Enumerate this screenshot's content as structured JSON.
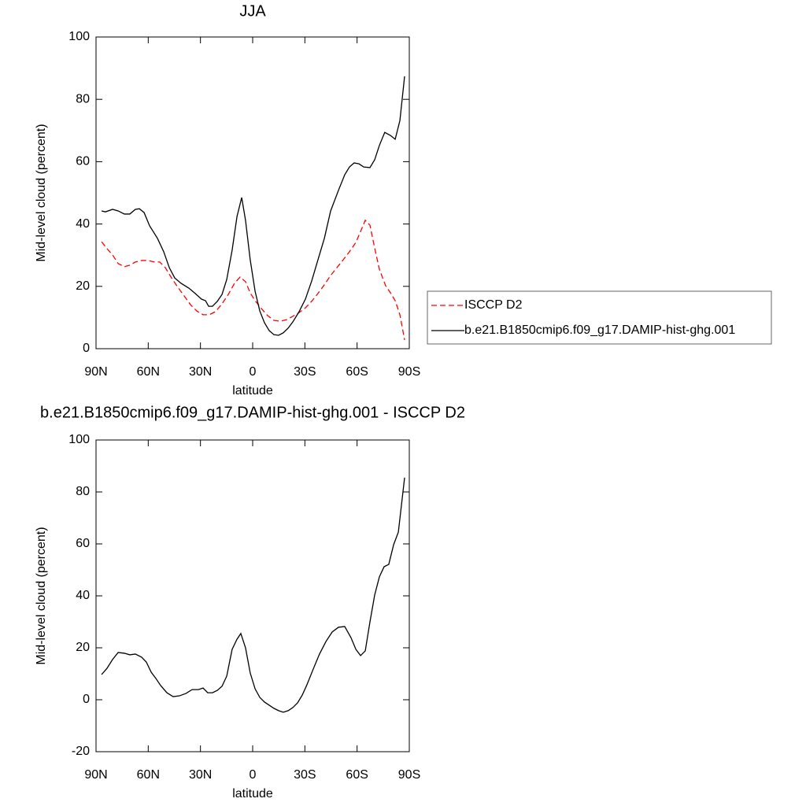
{
  "chart_data": [
    {
      "type": "line",
      "title": "JJA",
      "xlabel": "latitude",
      "ylabel": "Mid-level cloud (percent)",
      "xlim": [
        90,
        -90
      ],
      "xticks": [
        {
          "value": 90,
          "label": "90N"
        },
        {
          "value": 60,
          "label": "60N"
        },
        {
          "value": 30,
          "label": "30N"
        },
        0,
        {
          "value": -30,
          "label": "30S"
        },
        {
          "value": -60,
          "label": "60S"
        },
        {
          "value": -90,
          "label": "90S"
        }
      ],
      "ylim": [
        0,
        100
      ],
      "yticks": [
        0,
        20,
        40,
        60,
        80,
        100
      ],
      "legend": "right",
      "series": [
        {
          "name": "ISCCP D2",
          "color": "#ff0000",
          "dash": "dashed",
          "x": [
            86.8,
            83.7,
            80.5,
            77.3,
            73.7,
            70.6,
            67.4,
            63.8,
            60.1,
            56.5,
            53.4,
            50.2,
            46.6,
            43.0,
            39.3,
            35.7,
            32.1,
            28.5,
            24.9,
            21.3,
            17.6,
            14.0,
            10.4,
            7.2,
            4.1,
            1.4,
            -1.4,
            -5.0,
            -8.6,
            -12.2,
            -15.8,
            -19.5,
            -23.1,
            -26.7,
            -30.3,
            -33.9,
            -37.5,
            -41.2,
            -44.8,
            -48.4,
            -52.0,
            -55.6,
            -59.3,
            -62.0,
            -64.7,
            -67.4,
            -70.1,
            -72.8,
            -76.4,
            -79.2,
            -81.9,
            -84.6,
            -87.3
          ],
          "values": [
            34.3,
            32.1,
            30.1,
            27.3,
            26.3,
            26.8,
            27.8,
            28.3,
            28.3,
            27.8,
            27.8,
            26.0,
            22.7,
            19.7,
            16.9,
            14.1,
            12.1,
            10.9,
            10.9,
            11.9,
            14.4,
            17.4,
            21.0,
            23.0,
            21.5,
            17.9,
            15.4,
            12.9,
            10.6,
            9.1,
            8.8,
            9.3,
            10.4,
            11.6,
            13.1,
            15.2,
            17.7,
            20.5,
            23.5,
            26.0,
            28.5,
            31.1,
            34.1,
            37.6,
            41.2,
            39.6,
            32.3,
            25.5,
            20.2,
            17.9,
            15.4,
            10.9,
            2.8
          ]
        },
        {
          "name": "b.e21.B1850cmip6.f09_g17.DAMIP-hist-ghg.001",
          "color": "#000000",
          "dash": "solid",
          "x": [
            86.8,
            84.6,
            80.5,
            77.3,
            73.7,
            70.6,
            67.4,
            65.1,
            62.4,
            59.2,
            54.7,
            51.1,
            47.9,
            44.8,
            41.2,
            36.6,
            33.0,
            29.4,
            27.1,
            25.3,
            23.1,
            20.3,
            17.6,
            14.9,
            11.8,
            9.0,
            6.3,
            4.1,
            1.4,
            -1.4,
            -4.1,
            -6.8,
            -9.5,
            -12.2,
            -14.9,
            -17.6,
            -20.4,
            -23.1,
            -26.7,
            -30.3,
            -33.9,
            -37.5,
            -41.2,
            -44.8,
            -49.3,
            -52.9,
            -55.6,
            -58.3,
            -61.1,
            -63.8,
            -67.4,
            -70.1,
            -72.8,
            -75.9,
            -79.2,
            -81.9,
            -84.6,
            -87.3
          ],
          "values": [
            44.2,
            43.9,
            44.7,
            44.2,
            43.2,
            43.2,
            44.7,
            44.9,
            43.7,
            39.4,
            35.4,
            31.1,
            26.0,
            22.7,
            21.0,
            19.4,
            17.7,
            15.9,
            15.4,
            13.6,
            13.6,
            15.2,
            17.4,
            22.2,
            31.6,
            42.4,
            48.5,
            41.2,
            28.5,
            18.4,
            12.1,
            8.3,
            5.8,
            4.5,
            4.3,
            5.1,
            6.6,
            8.6,
            11.9,
            15.9,
            21.7,
            28.5,
            35.4,
            44.2,
            50.8,
            55.8,
            58.3,
            59.6,
            59.3,
            58.3,
            58.1,
            60.6,
            65.2,
            69.4,
            68.4,
            67.2,
            73.2,
            87.4
          ]
        }
      ]
    },
    {
      "type": "line",
      "title": "b.e21.B1850cmip6.f09_g17.DAMIP-hist-ghg.001 - ISCCP D2",
      "xlabel": "latitude",
      "ylabel": "Mid-level cloud (percent)",
      "xlim": [
        90,
        -90
      ],
      "xticks": [
        {
          "value": 90,
          "label": "90N"
        },
        {
          "value": 60,
          "label": "60N"
        },
        {
          "value": 30,
          "label": "30N"
        },
        0,
        {
          "value": -30,
          "label": "30S"
        },
        {
          "value": -60,
          "label": "60S"
        },
        {
          "value": -90,
          "label": "90S"
        }
      ],
      "ylim": [
        -20,
        100
      ],
      "yticks": [
        -20,
        0,
        20,
        40,
        60,
        80,
        100
      ],
      "series": [
        {
          "color": "#000000",
          "dash": "solid",
          "x": [
            86.8,
            83.7,
            80.5,
            77.3,
            73.7,
            70.6,
            67.4,
            63.8,
            61.1,
            58.3,
            55.6,
            52.9,
            49.3,
            45.7,
            42.1,
            38.4,
            34.8,
            31.2,
            28.5,
            25.8,
            23.1,
            20.3,
            17.6,
            14.9,
            11.8,
            9.0,
            6.8,
            4.1,
            1.4,
            -1.4,
            -4.1,
            -6.8,
            -9.5,
            -12.2,
            -14.9,
            -17.6,
            -20.4,
            -23.1,
            -25.8,
            -28.5,
            -31.2,
            -34.8,
            -38.4,
            -42.1,
            -45.7,
            -49.3,
            -52.9,
            -56.5,
            -59.3,
            -62.0,
            -64.7,
            -67.4,
            -70.1,
            -72.8,
            -75.5,
            -78.2,
            -81.0,
            -83.7,
            -87.3
          ],
          "values": [
            9.7,
            12.1,
            15.5,
            18.2,
            17.9,
            17.3,
            17.6,
            16.4,
            14.5,
            10.6,
            8.2,
            5.5,
            2.7,
            1.2,
            1.5,
            2.4,
            3.9,
            3.9,
            4.5,
            2.7,
            2.7,
            3.6,
            5.2,
            9.1,
            19.4,
            23.3,
            25.5,
            20.0,
            10.3,
            4.2,
            0.9,
            -0.9,
            -2.1,
            -3.3,
            -4.2,
            -4.8,
            -4.2,
            -3.0,
            -1.2,
            1.8,
            5.8,
            11.8,
            17.6,
            22.4,
            26.1,
            27.9,
            28.2,
            23.9,
            19.4,
            17.0,
            18.8,
            30.0,
            40.3,
            47.3,
            51.2,
            52.1,
            59.7,
            64.5,
            85.5
          ]
        }
      ]
    }
  ]
}
